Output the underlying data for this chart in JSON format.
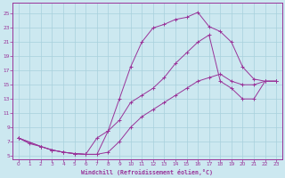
{
  "xlabel": "Windchill (Refroidissement éolien,°C)",
  "background_color": "#cce8f0",
  "grid_color": "#a8d0dc",
  "line_color": "#993399",
  "xlim": [
    -0.5,
    23.5
  ],
  "ylim": [
    4.5,
    26.5
  ],
  "xticks": [
    0,
    1,
    2,
    3,
    4,
    5,
    6,
    7,
    8,
    9,
    10,
    11,
    12,
    13,
    14,
    15,
    16,
    17,
    18,
    19,
    20,
    21,
    22,
    23
  ],
  "yticks": [
    5,
    7,
    9,
    11,
    13,
    15,
    17,
    19,
    21,
    23,
    25
  ],
  "curve1_x": [
    0,
    1,
    2,
    3,
    4,
    5,
    6,
    7,
    8,
    9,
    10,
    11,
    12,
    13,
    14,
    15,
    16,
    17,
    18,
    19,
    20,
    21,
    22,
    23
  ],
  "curve1_y": [
    7.5,
    6.7,
    6.3,
    5.8,
    5.5,
    5.3,
    5.2,
    5.2,
    8.5,
    13.0,
    17.5,
    21.0,
    23.0,
    23.5,
    24.2,
    24.5,
    25.2,
    23.2,
    22.5,
    21.0,
    17.5,
    15.8,
    15.5,
    15.5
  ],
  "curve2_x": [
    0,
    2,
    3,
    4,
    5,
    6,
    7,
    8,
    9,
    10,
    11,
    12,
    13,
    14,
    15,
    16,
    17,
    18,
    19,
    20,
    21,
    22,
    23
  ],
  "curve2_y": [
    7.5,
    6.3,
    5.8,
    5.5,
    5.3,
    5.2,
    7.5,
    8.5,
    10.0,
    12.5,
    13.5,
    14.5,
    16.0,
    18.0,
    19.5,
    21.0,
    22.0,
    15.5,
    14.5,
    13.0,
    13.0,
    15.5,
    15.5
  ],
  "curve3_x": [
    0,
    2,
    3,
    4,
    5,
    6,
    7,
    8,
    9,
    10,
    11,
    12,
    13,
    14,
    15,
    16,
    17,
    18,
    19,
    20,
    21,
    22,
    23
  ],
  "curve3_y": [
    7.5,
    6.3,
    5.8,
    5.5,
    5.3,
    5.2,
    5.2,
    5.5,
    7.0,
    9.0,
    10.5,
    11.5,
    12.5,
    13.5,
    14.5,
    15.5,
    16.0,
    16.5,
    15.5,
    15.0,
    15.0,
    15.5,
    15.5
  ]
}
